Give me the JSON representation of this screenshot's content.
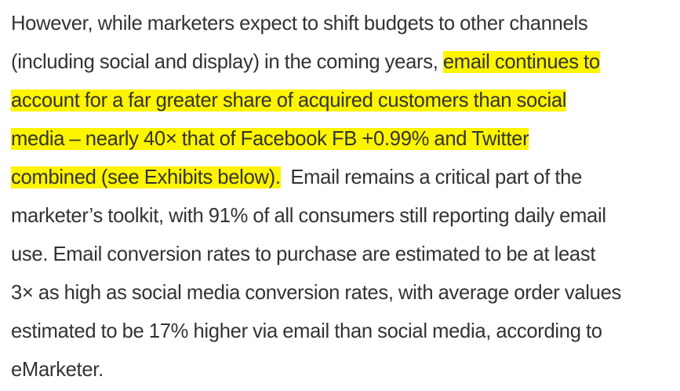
{
  "article": {
    "lines": [
      {
        "plain_before": "However, while marketers expect to shift budgets to other channels",
        "highlight": "",
        "plain_after": ""
      },
      {
        "plain_before": "(including social and display) in the coming years, ",
        "highlight": "email continues to",
        "plain_after": ""
      },
      {
        "plain_before": "",
        "highlight": "account for a far greater share of acquired customers than social",
        "plain_after": ""
      },
      {
        "plain_before": "",
        "highlight": "media – nearly 40× that of Facebook FB +0.99% and Twitter",
        "plain_after": ""
      },
      {
        "plain_before": "",
        "highlight": "combined (see Exhibits below).",
        "plain_after": "  Email remains a critical part of the"
      },
      {
        "plain_before": "marketer’s toolkit, with 91% of all consumers still reporting daily email",
        "highlight": "",
        "plain_after": ""
      },
      {
        "plain_before": "use. Email conversion rates to purchase are estimated to be at least",
        "highlight": "",
        "plain_after": ""
      },
      {
        "plain_before": "3× as high as social media conversion rates, with average order values",
        "highlight": "",
        "plain_after": ""
      },
      {
        "plain_before": "estimated to be 17% higher via email than social media, according to",
        "highlight": "",
        "plain_after": ""
      },
      {
        "plain_before": "eMarketer.",
        "highlight": "",
        "plain_after": ""
      }
    ],
    "highlight_color": "#fdf400",
    "text_color": "#333333"
  }
}
